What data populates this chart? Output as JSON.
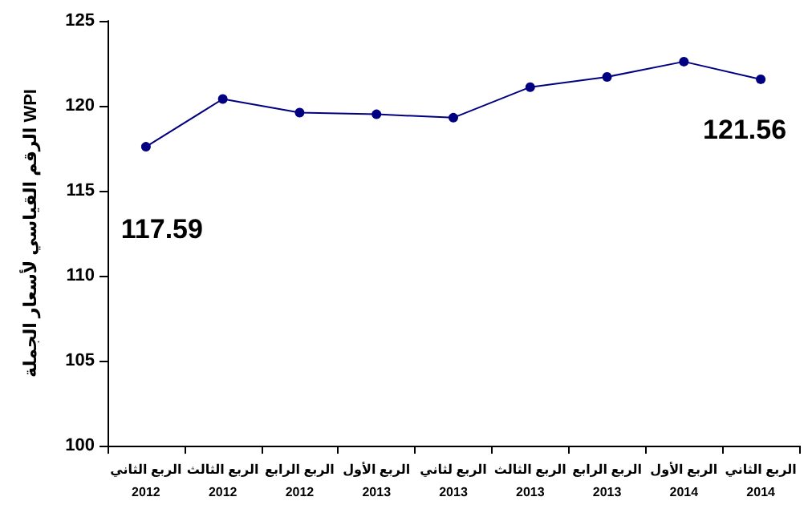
{
  "chart_data": {
    "type": "line",
    "ylabel": "الرقم القياسي لأسعار الجملة WPI",
    "categories": [
      "الربع الثاني\n2012",
      "الربع الثالث\n2012",
      "الربع الرابع\n2012",
      "الربع الأول\n2013",
      "الربع لثاني\n2013",
      "الربع الثالث\n2013",
      "الربع الرابع\n2013",
      "الربع الأول\n2014",
      "الربع الثاني\n2014"
    ],
    "series": [
      {
        "color": "#000080",
        "values": [
          117.59,
          120.4,
          119.6,
          119.5,
          119.3,
          121.1,
          121.7,
          122.6,
          121.56
        ],
        "value_labels": [
          "117.59",
          null,
          null,
          null,
          null,
          null,
          null,
          null,
          "121.56"
        ]
      }
    ],
    "ylim": [
      100,
      125
    ],
    "yticks": [
      100,
      105,
      110,
      115,
      120,
      125
    ],
    "grid": false,
    "marker": "circle",
    "line_style": "solid"
  }
}
